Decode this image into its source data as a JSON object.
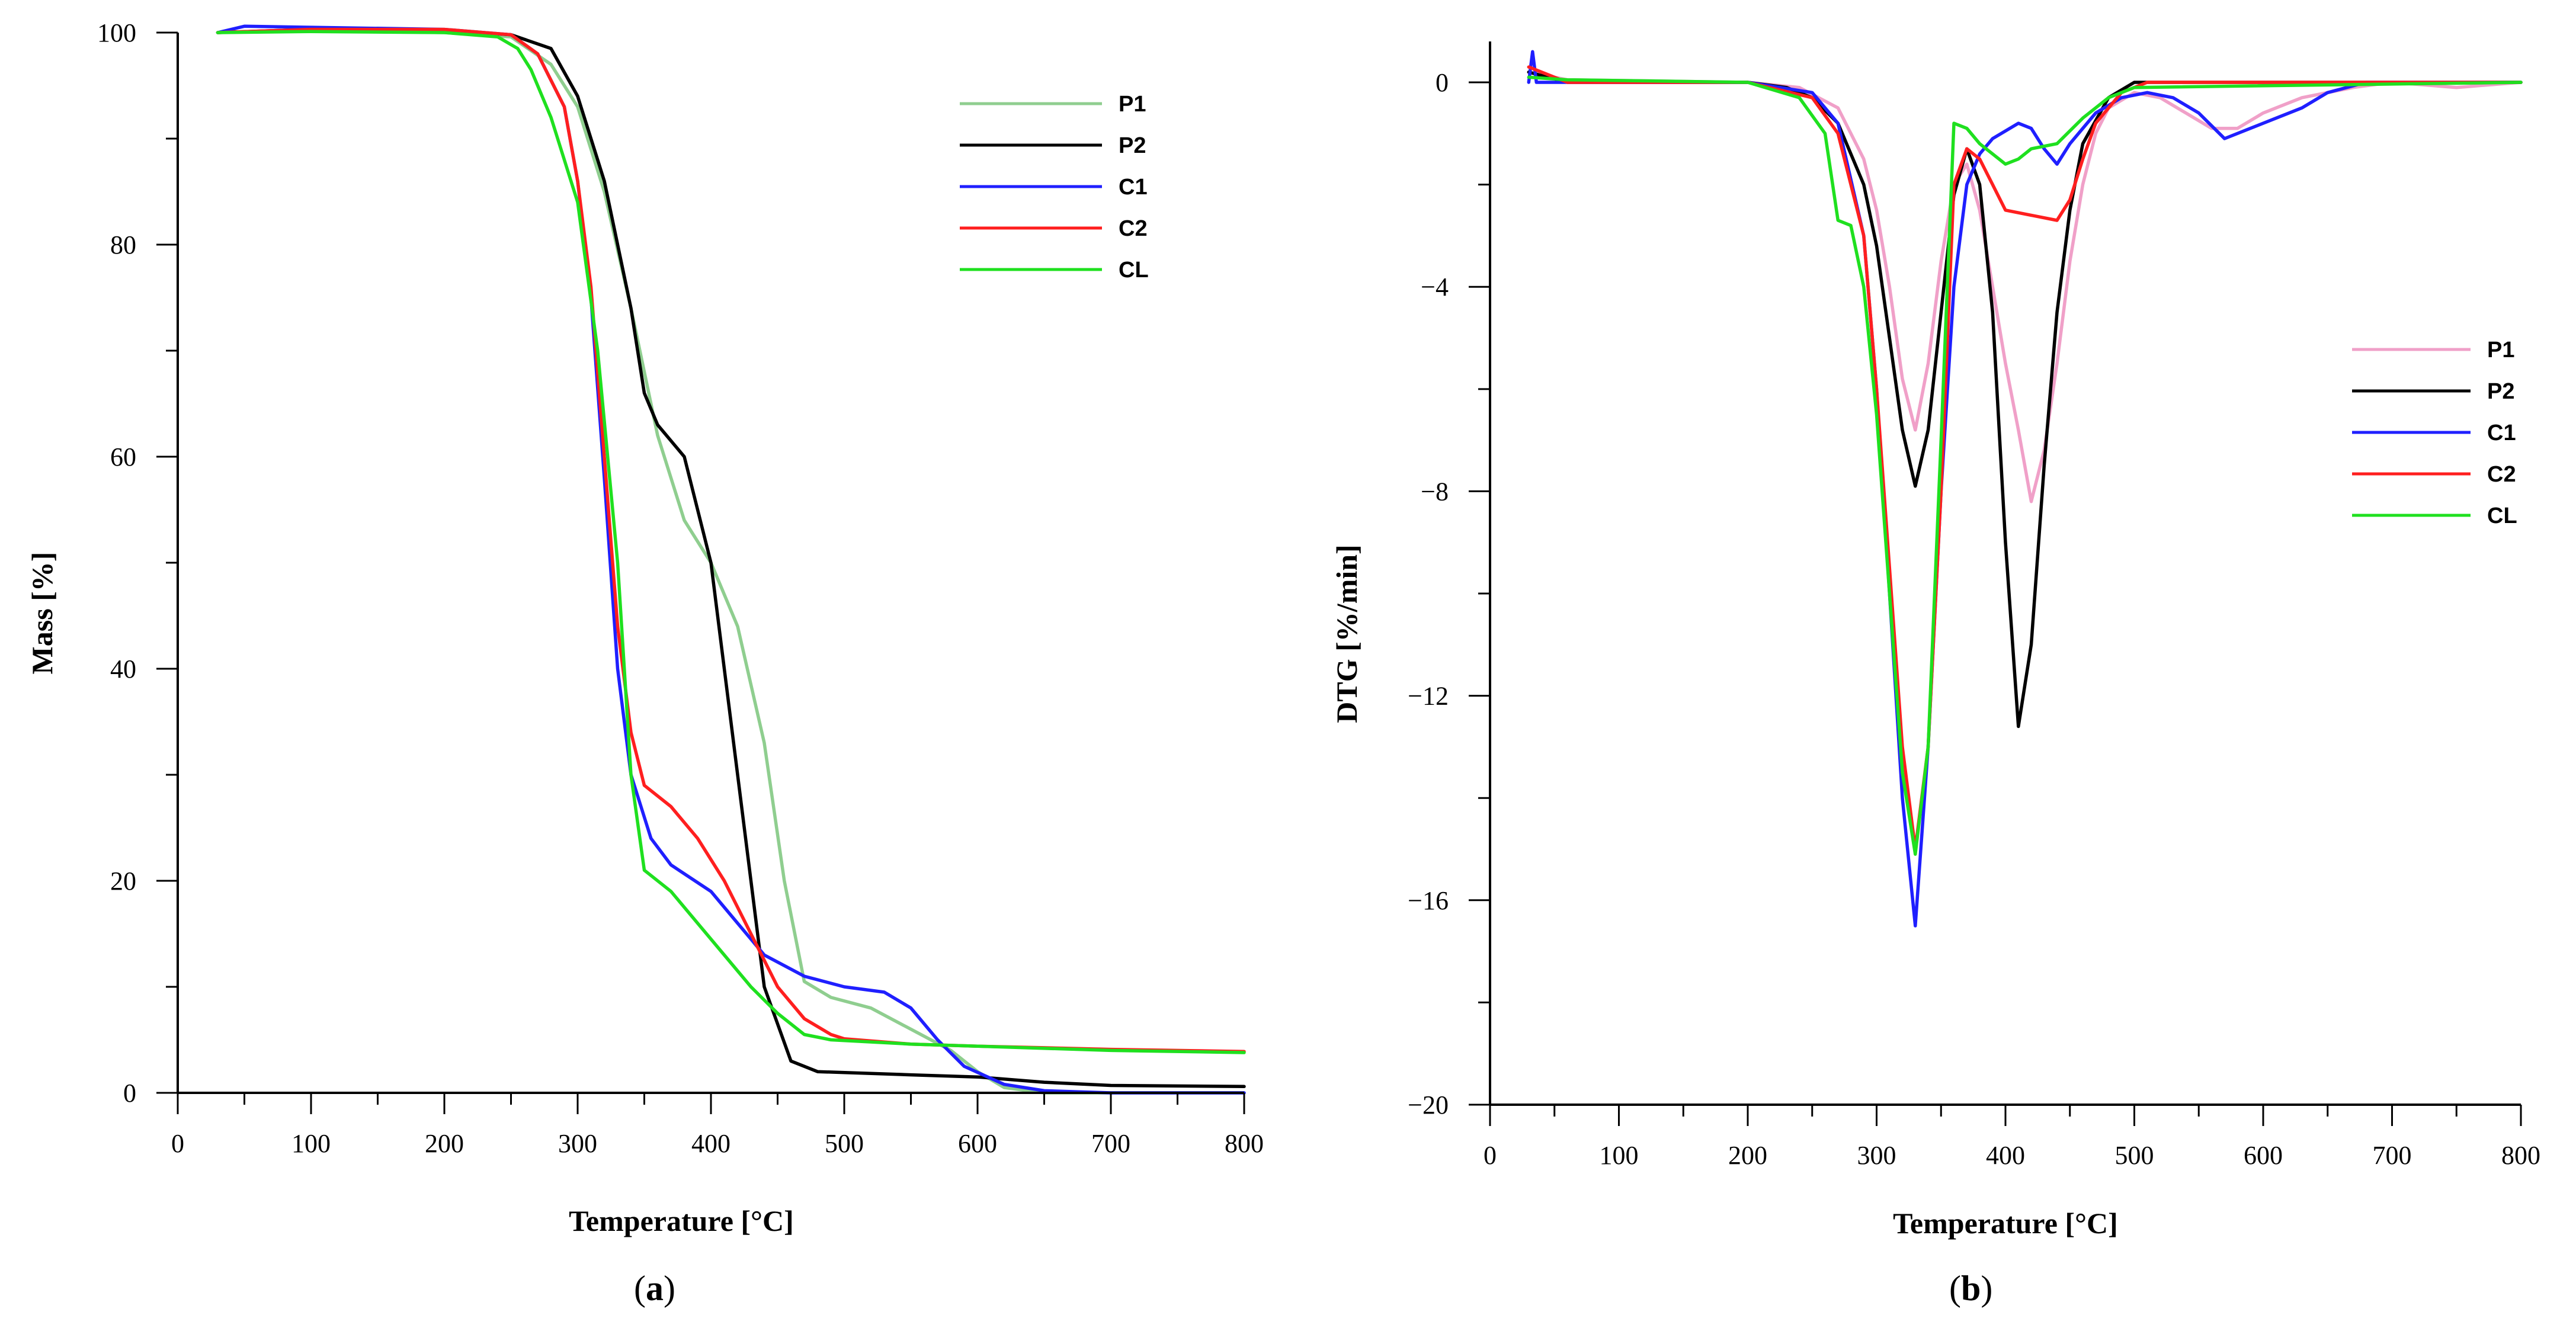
{
  "chart_data": [
    {
      "id": "a",
      "type": "line",
      "panel_label": "a",
      "xlabel": "Temperature [°C]",
      "ylabel": "Mass [%]",
      "xlim": [
        0,
        800
      ],
      "ylim": [
        0,
        100
      ],
      "xticks": [
        0,
        100,
        200,
        300,
        400,
        500,
        600,
        700,
        800
      ],
      "yticks": [
        0,
        20,
        40,
        60,
        80,
        100
      ],
      "legend_position": "top-right",
      "series": [
        {
          "name": "P1",
          "color": "#8fce8f",
          "points": [
            [
              30,
              100
            ],
            [
              100,
              100.2
            ],
            [
              200,
              100
            ],
            [
              250,
              99.6
            ],
            [
              280,
              97
            ],
            [
              300,
              93
            ],
            [
              320,
              85
            ],
            [
              340,
              74
            ],
            [
              360,
              62
            ],
            [
              380,
              54
            ],
            [
              400,
              50
            ],
            [
              420,
              44
            ],
            [
              440,
              33
            ],
            [
              455,
              20
            ],
            [
              470,
              10.5
            ],
            [
              490,
              9
            ],
            [
              520,
              8
            ],
            [
              550,
              6
            ],
            [
              580,
              4
            ],
            [
              600,
              2
            ],
            [
              620,
              0.5
            ],
            [
              650,
              0
            ],
            [
              700,
              0
            ],
            [
              800,
              0
            ]
          ]
        },
        {
          "name": "P2",
          "color": "#000000",
          "points": [
            [
              30,
              100
            ],
            [
              100,
              100.3
            ],
            [
              200,
              100.2
            ],
            [
              250,
              99.8
            ],
            [
              280,
              98.5
            ],
            [
              300,
              94
            ],
            [
              320,
              86
            ],
            [
              340,
              74
            ],
            [
              350,
              66
            ],
            [
              360,
              63
            ],
            [
              380,
              60
            ],
            [
              400,
              50
            ],
            [
              420,
              30
            ],
            [
              440,
              10
            ],
            [
              460,
              3
            ],
            [
              480,
              2
            ],
            [
              550,
              1.7
            ],
            [
              600,
              1.5
            ],
            [
              650,
              1
            ],
            [
              700,
              0.7
            ],
            [
              800,
              0.6
            ]
          ]
        },
        {
          "name": "C1",
          "color": "#1f1fff",
          "points": [
            [
              30,
              100
            ],
            [
              50,
              100.6
            ],
            [
              100,
              100.5
            ],
            [
              200,
              100.3
            ],
            [
              250,
              99.8
            ],
            [
              270,
              98
            ],
            [
              290,
              93
            ],
            [
              300,
              86
            ],
            [
              310,
              75
            ],
            [
              320,
              58
            ],
            [
              330,
              40
            ],
            [
              340,
              30
            ],
            [
              355,
              24
            ],
            [
              370,
              21.5
            ],
            [
              400,
              19
            ],
            [
              420,
              16
            ],
            [
              440,
              13
            ],
            [
              470,
              11
            ],
            [
              500,
              10
            ],
            [
              530,
              9.5
            ],
            [
              550,
              8
            ],
            [
              570,
              5
            ],
            [
              590,
              2.5
            ],
            [
              620,
              0.8
            ],
            [
              650,
              0.2
            ],
            [
              700,
              0
            ],
            [
              800,
              0
            ]
          ]
        },
        {
          "name": "C2",
          "color": "#ff1f1f",
          "points": [
            [
              30,
              100
            ],
            [
              100,
              100.3
            ],
            [
              200,
              100.3
            ],
            [
              250,
              99.8
            ],
            [
              270,
              98
            ],
            [
              290,
              93
            ],
            [
              300,
              86
            ],
            [
              310,
              76
            ],
            [
              320,
              60
            ],
            [
              330,
              44
            ],
            [
              340,
              34
            ],
            [
              350,
              29
            ],
            [
              370,
              27
            ],
            [
              390,
              24
            ],
            [
              410,
              20
            ],
            [
              430,
              15
            ],
            [
              450,
              10
            ],
            [
              470,
              7
            ],
            [
              490,
              5.5
            ],
            [
              500,
              5.1
            ],
            [
              550,
              4.6
            ],
            [
              600,
              4.4
            ],
            [
              700,
              4.1
            ],
            [
              800,
              3.9
            ]
          ]
        },
        {
          "name": "CL",
          "color": "#1fe01f",
          "points": [
            [
              30,
              100
            ],
            [
              100,
              100.1
            ],
            [
              200,
              100
            ],
            [
              240,
              99.6
            ],
            [
              255,
              98.5
            ],
            [
              265,
              96.5
            ],
            [
              280,
              92
            ],
            [
              300,
              84
            ],
            [
              315,
              70
            ],
            [
              330,
              50
            ],
            [
              340,
              30
            ],
            [
              350,
              21
            ],
            [
              370,
              19
            ],
            [
              390,
              16
            ],
            [
              410,
              13
            ],
            [
              430,
              10
            ],
            [
              450,
              7.5
            ],
            [
              470,
              5.5
            ],
            [
              490,
              5
            ],
            [
              550,
              4.6
            ],
            [
              600,
              4.4
            ],
            [
              700,
              4
            ],
            [
              800,
              3.8
            ]
          ]
        }
      ]
    },
    {
      "id": "b",
      "type": "line",
      "panel_label": "b",
      "xlabel": "Temperature [°C]",
      "ylabel": "DTG [%/min]",
      "xlim": [
        0,
        800
      ],
      "ylim": [
        -20,
        0.8
      ],
      "xticks": [
        0,
        100,
        200,
        300,
        400,
        500,
        600,
        700,
        800
      ],
      "yticks": [
        -20,
        -16,
        -12,
        -8,
        -4,
        0
      ],
      "ytick_labels": [
        "−20",
        "−16",
        "−12",
        "−8",
        "−4",
        "0"
      ],
      "legend_position": "middle-right",
      "series": [
        {
          "name": "P1",
          "color": "#f0a0c8",
          "points": [
            [
              30,
              0.2
            ],
            [
              60,
              0.05
            ],
            [
              200,
              0
            ],
            [
              240,
              -0.1
            ],
            [
              270,
              -0.5
            ],
            [
              290,
              -1.5
            ],
            [
              300,
              -2.5
            ],
            [
              310,
              -4
            ],
            [
              320,
              -5.8
            ],
            [
              330,
              -6.8
            ],
            [
              340,
              -5.5
            ],
            [
              350,
              -3.5
            ],
            [
              360,
              -2
            ],
            [
              370,
              -1.6
            ],
            [
              380,
              -2.5
            ],
            [
              390,
              -4
            ],
            [
              400,
              -5.5
            ],
            [
              410,
              -6.8
            ],
            [
              420,
              -8.2
            ],
            [
              430,
              -7.2
            ],
            [
              440,
              -5.5
            ],
            [
              450,
              -3.5
            ],
            [
              460,
              -2
            ],
            [
              470,
              -1
            ],
            [
              480,
              -0.5
            ],
            [
              500,
              -0.2
            ],
            [
              520,
              -0.3
            ],
            [
              540,
              -0.6
            ],
            [
              560,
              -0.9
            ],
            [
              580,
              -0.9
            ],
            [
              600,
              -0.6
            ],
            [
              630,
              -0.3
            ],
            [
              670,
              -0.1
            ],
            [
              700,
              0
            ],
            [
              750,
              -0.1
            ],
            [
              800,
              0
            ]
          ]
        },
        {
          "name": "P2",
          "color": "#000000",
          "points": [
            [
              30,
              0.2
            ],
            [
              60,
              0
            ],
            [
              200,
              0
            ],
            [
              230,
              -0.1
            ],
            [
              250,
              -0.3
            ],
            [
              270,
              -0.8
            ],
            [
              290,
              -2
            ],
            [
              300,
              -3.2
            ],
            [
              310,
              -5
            ],
            [
              320,
              -6.8
            ],
            [
              330,
              -7.9
            ],
            [
              340,
              -6.8
            ],
            [
              350,
              -4.5
            ],
            [
              360,
              -2.2
            ],
            [
              370,
              -1.3
            ],
            [
              380,
              -2
            ],
            [
              390,
              -4.5
            ],
            [
              400,
              -9
            ],
            [
              410,
              -12.6
            ],
            [
              420,
              -11
            ],
            [
              430,
              -7.5
            ],
            [
              440,
              -4.5
            ],
            [
              450,
              -2.5
            ],
            [
              460,
              -1.2
            ],
            [
              480,
              -0.3
            ],
            [
              500,
              0
            ],
            [
              800,
              0
            ]
          ]
        },
        {
          "name": "C1",
          "color": "#1f1fff",
          "points": [
            [
              30,
              0
            ],
            [
              33,
              0.6
            ],
            [
              36,
              0
            ],
            [
              60,
              0
            ],
            [
              200,
              0
            ],
            [
              250,
              -0.2
            ],
            [
              270,
              -0.8
            ],
            [
              290,
              -3
            ],
            [
              300,
              -6
            ],
            [
              310,
              -10
            ],
            [
              320,
              -14
            ],
            [
              330,
              -16.5
            ],
            [
              340,
              -13
            ],
            [
              350,
              -8
            ],
            [
              360,
              -4
            ],
            [
              370,
              -2
            ],
            [
              380,
              -1.4
            ],
            [
              390,
              -1.1
            ],
            [
              410,
              -0.8
            ],
            [
              420,
              -0.9
            ],
            [
              430,
              -1.3
            ],
            [
              440,
              -1.6
            ],
            [
              450,
              -1.2
            ],
            [
              470,
              -0.6
            ],
            [
              490,
              -0.3
            ],
            [
              510,
              -0.2
            ],
            [
              530,
              -0.3
            ],
            [
              550,
              -0.6
            ],
            [
              570,
              -1.1
            ],
            [
              590,
              -0.9
            ],
            [
              610,
              -0.7
            ],
            [
              630,
              -0.5
            ],
            [
              650,
              -0.2
            ],
            [
              680,
              0
            ],
            [
              800,
              0
            ]
          ]
        },
        {
          "name": "C2",
          "color": "#ff1f1f",
          "points": [
            [
              30,
              0.3
            ],
            [
              60,
              0
            ],
            [
              200,
              0
            ],
            [
              250,
              -0.3
            ],
            [
              270,
              -1
            ],
            [
              290,
              -3
            ],
            [
              300,
              -6
            ],
            [
              310,
              -9.5
            ],
            [
              320,
              -13
            ],
            [
              330,
              -15
            ],
            [
              340,
              -13
            ],
            [
              350,
              -8
            ],
            [
              360,
              -2
            ],
            [
              370,
              -1.3
            ],
            [
              380,
              -1.5
            ],
            [
              390,
              -2
            ],
            [
              400,
              -2.5
            ],
            [
              420,
              -2.6
            ],
            [
              440,
              -2.7
            ],
            [
              450,
              -2.3
            ],
            [
              460,
              -1.5
            ],
            [
              470,
              -0.8
            ],
            [
              490,
              -0.2
            ],
            [
              510,
              0
            ],
            [
              800,
              0
            ]
          ]
        },
        {
          "name": "CL",
          "color": "#1fe01f",
          "points": [
            [
              30,
              0.1
            ],
            [
              60,
              0.05
            ],
            [
              200,
              0
            ],
            [
              240,
              -0.3
            ],
            [
              260,
              -1
            ],
            [
              270,
              -2.7
            ],
            [
              280,
              -2.8
            ],
            [
              290,
              -4
            ],
            [
              300,
              -6.5
            ],
            [
              310,
              -10
            ],
            [
              320,
              -13.5
            ],
            [
              330,
              -15.1
            ],
            [
              340,
              -13
            ],
            [
              350,
              -7
            ],
            [
              360,
              -0.8
            ],
            [
              370,
              -0.9
            ],
            [
              380,
              -1.2
            ],
            [
              400,
              -1.6
            ],
            [
              410,
              -1.5
            ],
            [
              420,
              -1.3
            ],
            [
              440,
              -1.2
            ],
            [
              460,
              -0.7
            ],
            [
              480,
              -0.3
            ],
            [
              500,
              -0.1
            ],
            [
              800,
              0
            ]
          ]
        }
      ]
    }
  ]
}
